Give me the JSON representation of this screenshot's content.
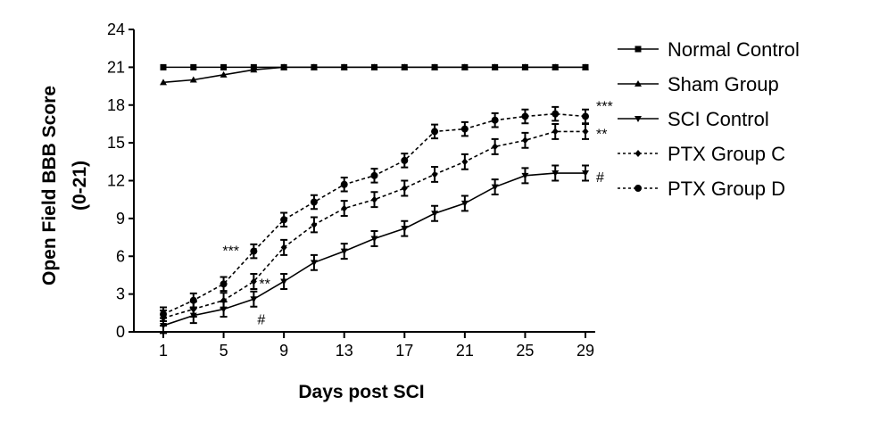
{
  "chart_data": {
    "type": "line",
    "title": "",
    "xlabel": "Days post SCI",
    "ylabel": "Open Field BBB Score (0-21)",
    "ylabel_lines": [
      "Open Field BBB Score",
      "(0-21)"
    ],
    "xlim": [
      0,
      30
    ],
    "ylim": [
      0,
      24
    ],
    "xticks": [
      1,
      5,
      9,
      13,
      17,
      21,
      25,
      29
    ],
    "yticks": [
      0,
      3,
      6,
      9,
      12,
      15,
      18,
      21,
      24
    ],
    "grid": false,
    "legend_position": "right",
    "x": [
      1,
      3,
      5,
      7,
      9,
      11,
      13,
      15,
      17,
      19,
      21,
      23,
      25,
      27,
      29
    ],
    "series": [
      {
        "name": "Normal Control",
        "marker": "square",
        "line": "solid",
        "values": [
          21,
          21,
          21,
          21,
          21,
          21,
          21,
          21,
          21,
          21,
          21,
          21,
          21,
          21,
          21
        ]
      },
      {
        "name": "Sham Group",
        "marker": "triangle-up",
        "line": "solid",
        "values": [
          19.8,
          20.0,
          20.4,
          20.8,
          21,
          21,
          21,
          21,
          21,
          21,
          21,
          21,
          21,
          21,
          21
        ]
      },
      {
        "name": "SCI Control",
        "marker": "triangle-down",
        "line": "solid",
        "values": [
          0.5,
          1.3,
          1.8,
          2.6,
          4.0,
          5.5,
          6.4,
          7.4,
          8.2,
          9.4,
          10.2,
          11.5,
          12.4,
          12.6,
          12.6
        ],
        "error": 0.6
      },
      {
        "name": "PTX Group C",
        "marker": "diamond",
        "line": "dotted",
        "values": [
          1.1,
          1.8,
          2.5,
          4.0,
          6.7,
          8.5,
          9.8,
          10.5,
          11.4,
          12.5,
          13.5,
          14.7,
          15.2,
          15.9,
          15.9
        ],
        "error": 0.6
      },
      {
        "name": "PTX Group D",
        "marker": "circle",
        "line": "dotted",
        "values": [
          1.4,
          2.5,
          3.8,
          6.4,
          8.9,
          10.3,
          11.7,
          12.4,
          13.6,
          15.9,
          16.1,
          16.8,
          17.1,
          17.3,
          17.1
        ],
        "error": 0.55
      }
    ],
    "annotations": [
      {
        "text": "***",
        "series": "PTX Group D",
        "x": 7,
        "side": "left"
      },
      {
        "text": "**",
        "series": "PTX Group C",
        "x": 7,
        "side": "right"
      },
      {
        "text": "#",
        "series": "SCI Control",
        "x": 7,
        "side": "below-right"
      },
      {
        "text": "***",
        "series": "PTX Group D",
        "x": 29,
        "side": "upper-right"
      },
      {
        "text": "**",
        "series": "PTX Group C",
        "x": 29,
        "side": "right"
      },
      {
        "text": "#",
        "series": "SCI Control",
        "x": 29,
        "side": "right"
      }
    ]
  }
}
